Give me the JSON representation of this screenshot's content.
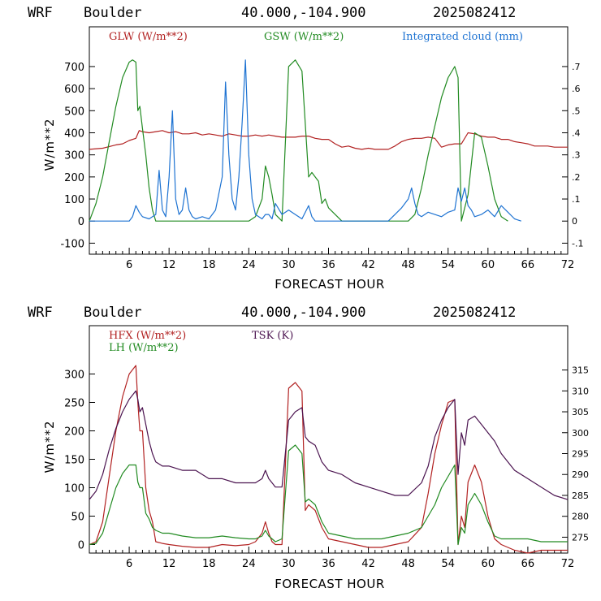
{
  "chart_data": [
    {
      "type": "line",
      "header": {
        "model": "WRF",
        "location": "Boulder",
        "coords": "40.000,-104.900",
        "init": "2025082412"
      },
      "xlabel": "FORECAST HOUR",
      "ylabel": "W/m**2",
      "xlim": [
        0,
        72
      ],
      "ylim": [
        -150,
        880
      ],
      "y2lim": [
        -0.15,
        0.88
      ],
      "x_ticks": [
        "6",
        "12",
        "18",
        "24",
        "30",
        "36",
        "42",
        "48",
        "54",
        "60",
        "66",
        "72"
      ],
      "y_ticks": [
        "-100",
        "0",
        "100",
        "200",
        "300",
        "400",
        "500",
        "600",
        "700"
      ],
      "y2_ticks": [
        "-.1",
        "0",
        ".1",
        ".2",
        ".3",
        ".4",
        ".5",
        ".6",
        ".7"
      ],
      "series": [
        {
          "name": "GLW (W/m**2)",
          "color": "#b22222",
          "axis": "left",
          "x": [
            0,
            2,
            4,
            5,
            6,
            7,
            7.5,
            8,
            9,
            10,
            11,
            12,
            13,
            14,
            15,
            16,
            17,
            18,
            19,
            20,
            21,
            22,
            23,
            24,
            25,
            26,
            27,
            28,
            29,
            30,
            31,
            32,
            33,
            34,
            35,
            36,
            37,
            38,
            39,
            40,
            41,
            42,
            43,
            44,
            45,
            46,
            47,
            48,
            49,
            50,
            51,
            52,
            53,
            54,
            55,
            56,
            57,
            58,
            59,
            60,
            61,
            62,
            63,
            64,
            65,
            66,
            67,
            68,
            69,
            70,
            71,
            72
          ],
          "values": [
            325,
            330,
            345,
            350,
            365,
            375,
            410,
            405,
            400,
            405,
            410,
            400,
            405,
            395,
            395,
            400,
            390,
            395,
            390,
            385,
            395,
            390,
            385,
            385,
            390,
            385,
            390,
            385,
            380,
            380,
            380,
            385,
            385,
            375,
            370,
            370,
            350,
            335,
            340,
            330,
            325,
            330,
            325,
            325,
            325,
            340,
            360,
            370,
            375,
            375,
            380,
            375,
            335,
            345,
            350,
            350,
            400,
            395,
            385,
            380,
            380,
            370,
            370,
            360,
            355,
            350,
            340,
            340,
            340,
            335,
            335,
            335
          ]
        },
        {
          "name": "GSW (W/m**2)",
          "color": "#228b22",
          "axis": "left",
          "x": [
            0,
            1,
            2,
            3,
            4,
            5,
            6,
            6.5,
            7,
            7.3,
            7.6,
            8,
            8.5,
            9,
            9.5,
            10,
            24,
            25,
            26,
            26.5,
            27,
            27.5,
            28,
            29,
            30,
            31,
            32,
            33,
            33.5,
            34,
            34.5,
            35,
            35.5,
            36,
            37,
            38,
            48,
            49,
            50,
            51,
            52,
            53,
            54,
            55,
            55.5,
            56,
            57,
            58,
            59,
            60,
            61,
            62,
            63
          ],
          "values": [
            0,
            80,
            200,
            360,
            520,
            650,
            720,
            730,
            720,
            500,
            520,
            420,
            300,
            150,
            50,
            0,
            0,
            20,
            100,
            250,
            200,
            120,
            30,
            0,
            700,
            730,
            680,
            200,
            220,
            200,
            180,
            80,
            100,
            60,
            30,
            0,
            0,
            30,
            150,
            300,
            430,
            560,
            650,
            700,
            650,
            0,
            120,
            400,
            380,
            250,
            100,
            20,
            0
          ]
        },
        {
          "name": "Integrated cloud (mm)",
          "color": "#1e73d2",
          "axis": "right",
          "x": [
            0,
            6,
            6.5,
            7,
            7.5,
            8,
            9,
            10,
            10.5,
            11,
            11.5,
            12,
            12.5,
            13,
            13.5,
            14,
            14.5,
            15,
            15.5,
            16,
            17,
            18,
            19,
            20,
            20.5,
            21,
            21.5,
            22,
            22.5,
            23,
            23.5,
            24,
            24.5,
            25,
            26,
            26.5,
            27,
            27.5,
            28,
            29,
            30,
            31,
            32,
            33,
            33.5,
            34,
            35,
            36,
            45,
            46,
            47,
            48,
            48.5,
            49,
            49.5,
            50,
            51,
            52,
            53,
            54,
            55,
            55.5,
            56,
            56.5,
            57,
            57.5,
            58,
            59,
            60,
            61,
            62,
            63,
            64,
            65
          ],
          "values": [
            0,
            0,
            0.02,
            0.07,
            0.04,
            0.02,
            0.01,
            0.03,
            0.23,
            0.05,
            0.02,
            0.2,
            0.5,
            0.1,
            0.03,
            0.05,
            0.15,
            0.05,
            0.02,
            0.01,
            0.02,
            0.01,
            0.05,
            0.2,
            0.63,
            0.3,
            0.1,
            0.05,
            0.2,
            0.45,
            0.73,
            0.3,
            0.1,
            0.03,
            0.01,
            0.03,
            0.03,
            0.01,
            0.08,
            0.03,
            0.05,
            0.03,
            0.01,
            0.07,
            0.02,
            0,
            0,
            0,
            0,
            0.03,
            0.06,
            0.1,
            0.15,
            0.08,
            0.03,
            0.02,
            0.04,
            0.03,
            0.02,
            0.04,
            0.05,
            0.15,
            0.09,
            0.15,
            0.07,
            0.05,
            0.02,
            0.03,
            0.05,
            0.02,
            0.07,
            0.04,
            0.01,
            0
          ]
        }
      ]
    },
    {
      "type": "line",
      "header": {
        "model": "WRF",
        "location": "Boulder",
        "coords": "40.000,-104.900",
        "init": "2025082412"
      },
      "xlabel": "FORECAST HOUR",
      "ylabel": "W/m**2",
      "xlim": [
        0,
        72
      ],
      "ylim": [
        -15,
        385
      ],
      "y2lim": [
        271.2,
        325.6
      ],
      "x_ticks": [
        "6",
        "12",
        "18",
        "24",
        "30",
        "36",
        "42",
        "48",
        "54",
        "60",
        "66",
        "72"
      ],
      "y_ticks": [
        "0",
        "50",
        "100",
        "150",
        "200",
        "250",
        "300"
      ],
      "y2_ticks": [
        "275",
        "280",
        "285",
        "290",
        "295",
        "300",
        "305",
        "310",
        "315"
      ],
      "series": [
        {
          "name": "HFX (W/m**2)",
          "color": "#b22222",
          "axis": "left",
          "x": [
            0,
            1,
            2,
            3,
            4,
            5,
            6,
            7,
            7.3,
            7.6,
            8,
            8.5,
            9,
            9.5,
            10,
            11,
            12,
            14,
            16,
            18,
            20,
            22,
            24,
            25,
            26,
            26.5,
            27,
            27.5,
            28,
            29,
            30,
            31,
            32,
            32.5,
            33,
            34,
            35,
            36,
            38,
            40,
            42,
            44,
            46,
            48,
            50,
            51,
            52,
            53,
            54,
            55,
            55.5,
            56,
            56.5,
            57,
            58,
            59,
            60,
            61,
            62,
            64,
            66,
            68,
            70,
            72
          ],
          "values": [
            0,
            5,
            40,
            120,
            200,
            260,
            300,
            315,
            250,
            200,
            200,
            100,
            60,
            40,
            5,
            2,
            0,
            -3,
            -5,
            -5,
            0,
            -2,
            0,
            5,
            20,
            40,
            20,
            5,
            0,
            0,
            275,
            285,
            270,
            60,
            70,
            60,
            30,
            10,
            5,
            0,
            -5,
            -5,
            0,
            5,
            30,
            90,
            160,
            210,
            250,
            255,
            0,
            50,
            30,
            110,
            140,
            110,
            50,
            10,
            0,
            -10,
            -15,
            -10,
            -10,
            -10
          ]
        },
        {
          "name": "LH (W/m**2)",
          "color": "#228b22",
          "axis": "left",
          "x": [
            0,
            1,
            2,
            3,
            4,
            5,
            6,
            7,
            7.3,
            7.6,
            8,
            8.5,
            9,
            9.5,
            10,
            11,
            12,
            14,
            16,
            18,
            20,
            22,
            24,
            25,
            26,
            26.5,
            27,
            27.5,
            28,
            29,
            30,
            31,
            32,
            32.5,
            33,
            34,
            35,
            36,
            38,
            40,
            42,
            44,
            46,
            48,
            50,
            51,
            52,
            53,
            54,
            55,
            55.5,
            56,
            56.5,
            57,
            58,
            59,
            60,
            61,
            62,
            64,
            66,
            68,
            70,
            72
          ],
          "values": [
            0,
            2,
            20,
            60,
            100,
            125,
            140,
            140,
            110,
            100,
            100,
            55,
            45,
            30,
            25,
            20,
            20,
            15,
            12,
            12,
            15,
            12,
            10,
            10,
            15,
            25,
            15,
            10,
            5,
            10,
            165,
            175,
            160,
            75,
            80,
            70,
            40,
            20,
            15,
            10,
            10,
            10,
            15,
            20,
            30,
            50,
            70,
            100,
            120,
            140,
            0,
            30,
            20,
            70,
            90,
            70,
            40,
            15,
            10,
            10,
            10,
            5,
            5,
            5
          ]
        },
        {
          "name": "TSK (K)",
          "color": "#4b1450",
          "axis": "right",
          "x": [
            0,
            1,
            2,
            3,
            4,
            5,
            6,
            7,
            7.3,
            7.6,
            8,
            8.5,
            9,
            9.5,
            10,
            11,
            12,
            14,
            16,
            18,
            20,
            22,
            24,
            25,
            26,
            26.5,
            27,
            27.5,
            28,
            29,
            30,
            31,
            32,
            32.5,
            33,
            34,
            35,
            36,
            38,
            40,
            42,
            44,
            46,
            48,
            50,
            51,
            52,
            53,
            54,
            55,
            55.5,
            56,
            56.5,
            57,
            58,
            59,
            60,
            61,
            62,
            64,
            66,
            68,
            70,
            72
          ],
          "values": [
            284,
            286,
            290,
            296,
            301,
            305,
            308,
            310,
            308,
            305,
            306,
            302,
            298,
            295,
            293,
            292,
            292,
            291,
            291,
            289,
            289,
            288,
            288,
            288,
            289,
            291,
            289,
            288,
            287,
            287,
            303,
            305,
            306,
            299,
            298,
            297,
            293,
            291,
            290,
            288,
            287,
            286,
            285,
            285,
            288,
            292,
            299,
            303,
            306,
            308,
            290,
            300,
            297,
            303,
            304,
            302,
            300,
            298,
            295,
            291,
            289,
            287,
            285,
            284
          ]
        }
      ]
    }
  ]
}
